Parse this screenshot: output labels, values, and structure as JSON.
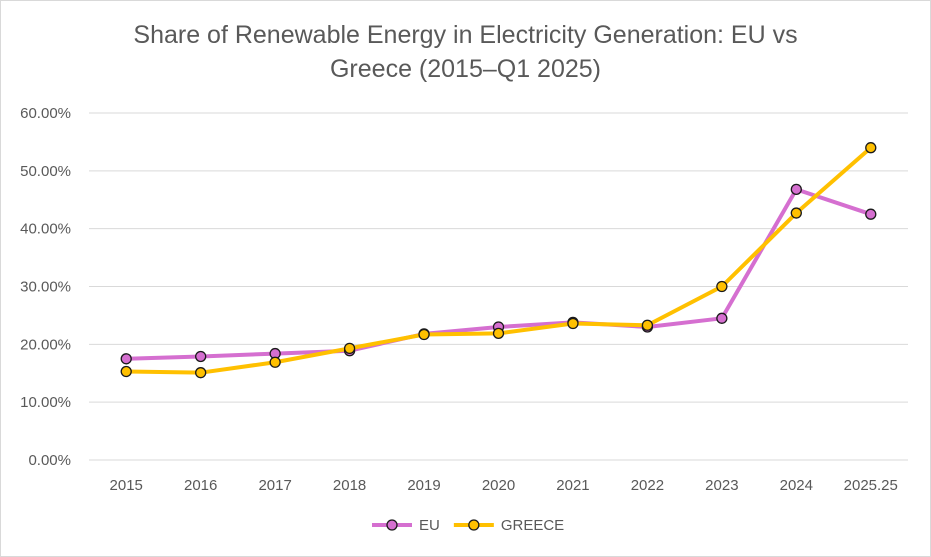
{
  "chart_data": {
    "type": "line",
    "title_line1": "Share of Renewable Energy in Electricity Generation: EU vs",
    "title_line2": "Greece (2015–Q1 2025)",
    "xlabel": "",
    "ylabel": "",
    "categories": [
      "2015",
      "2016",
      "2017",
      "2018",
      "2019",
      "2020",
      "2021",
      "2022",
      "2023",
      "2024",
      "2025.25"
    ],
    "y_ticks": [
      "0.00%",
      "10.00%",
      "20.00%",
      "30.00%",
      "40.00%",
      "50.00%",
      "60.00%"
    ],
    "ylim": [
      0,
      60
    ],
    "grid": true,
    "legend_position": "bottom",
    "series": [
      {
        "name": "EU",
        "color": "#d56fd0",
        "values": [
          17.5,
          17.9,
          18.4,
          18.9,
          21.8,
          23.0,
          23.8,
          23.0,
          24.5,
          46.8,
          42.5
        ]
      },
      {
        "name": "GREECE",
        "color": "#ffc000",
        "values": [
          15.3,
          15.1,
          16.9,
          19.3,
          21.7,
          21.9,
          23.6,
          23.3,
          30.0,
          42.7,
          54.0
        ]
      }
    ]
  }
}
